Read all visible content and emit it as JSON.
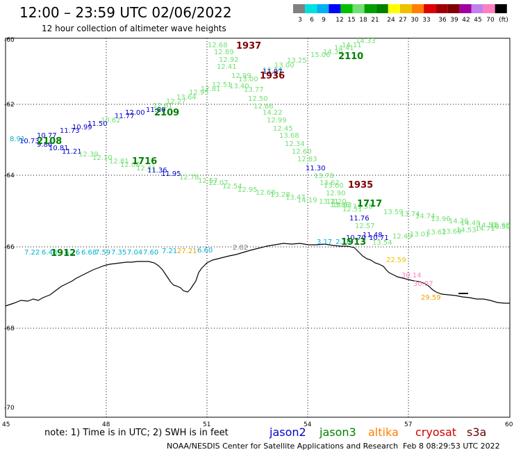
{
  "title": "12:00 – 23:59 UTC 02/06/2022",
  "subtitle": "12 hour collection of altimeter wave heights",
  "colorbar": {
    "colors": [
      "#808080",
      "#00e0e0",
      "#00b0f0",
      "#0000ff",
      "#00c000",
      "#70e070",
      "#00a000",
      "#008000",
      "#ffff00",
      "#f0c000",
      "#ff8000",
      "#e00000",
      "#a00000",
      "#800000",
      "#a000a0",
      "#c080f0",
      "#ff80c0",
      "#000000"
    ],
    "labels": [
      "3",
      "6",
      "9",
      "12",
      "15",
      "18",
      "21",
      "24",
      "27",
      "30",
      "33",
      "36",
      "39",
      "42",
      "45",
      "70",
      "(ft)"
    ]
  },
  "lat_labels": [
    "-60",
    "-62",
    "-64",
    "-66",
    "-68",
    "-70"
  ],
  "lon_labels": [
    "45",
    "48",
    "51",
    "54",
    "57",
    "60"
  ],
  "note": "note: 1) Time is in UTC; 2) SWH is in feet",
  "legend": [
    {
      "name": "jason2",
      "color": "#0000cc"
    },
    {
      "name": "jason3",
      "color": "#008000"
    },
    {
      "name": "altika",
      "color": "#ff8000"
    },
    {
      "name": "cryosat",
      "color": "#cc0000"
    },
    {
      "name": "s3a",
      "color": "#660000"
    }
  ],
  "footer_left": "NOAA/NESDIS Center for Satellite Applications and Research",
  "footer_right": "Feb  8 08:29:53 UTC 2022",
  "colors": {
    "light_green": "#70e070",
    "dark_green": "#008000",
    "cyan": "#00b0d0",
    "blue": "#0000cc",
    "maroon": "#800000",
    "orange": "#f0a000",
    "pink": "#ff80c0",
    "gray": "#808080"
  },
  "labels": [
    {
      "t": "12.68",
      "c": "#70e070"
    },
    {
      "t": "12.89",
      "c": "#70e070"
    },
    {
      "t": "12.92",
      "c": "#70e070"
    },
    {
      "t": "12.41",
      "c": "#70e070"
    },
    {
      "t": "12.99",
      "c": "#70e070"
    },
    {
      "t": "13.00",
      "c": "#70e070"
    },
    {
      "t": "13.40",
      "c": "#70e070"
    },
    {
      "t": "13.77",
      "c": "#70e070"
    },
    {
      "t": "12.50",
      "c": "#70e070"
    },
    {
      "t": "12.66",
      "c": "#70e070"
    },
    {
      "t": "14.22",
      "c": "#70e070"
    },
    {
      "t": "12.99",
      "c": "#70e070"
    },
    {
      "t": "12.45",
      "c": "#70e070"
    },
    {
      "t": "13.68",
      "c": "#70e070"
    },
    {
      "t": "12.34",
      "c": "#70e070"
    },
    {
      "t": "12.60",
      "c": "#70e070"
    },
    {
      "t": "12.83",
      "c": "#70e070"
    },
    {
      "t": "11.30",
      "c": "#0000cc"
    },
    {
      "t": "13.78",
      "c": "#70e070"
    },
    {
      "t": "13.62",
      "c": "#70e070"
    },
    {
      "t": "13.00",
      "c": "#70e070"
    },
    {
      "t": "12.90",
      "c": "#70e070"
    },
    {
      "t": "12.20",
      "c": "#70e070"
    },
    {
      "t": "13.88",
      "c": "#70e070"
    },
    {
      "t": "12.51",
      "c": "#70e070"
    },
    {
      "t": "11.76",
      "c": "#0000cc"
    },
    {
      "t": "12.57",
      "c": "#70e070"
    },
    {
      "t": "11.48",
      "c": "#0000cc"
    },
    {
      "t": "10.70",
      "c": "#0000cc"
    },
    {
      "t": "10.71",
      "c": "#0000cc"
    },
    {
      "t": "2.10",
      "c": "#00b0d0"
    },
    {
      "t": "3.17",
      "c": "#00b0d0"
    },
    {
      "t": "13.54",
      "c": "#70e070"
    },
    {
      "t": "14.33",
      "c": "#70e070"
    },
    {
      "t": "14.11",
      "c": "#70e070"
    },
    {
      "t": "14.41",
      "c": "#70e070"
    },
    {
      "t": "14.30",
      "c": "#70e070"
    },
    {
      "t": "15.06",
      "c": "#70e070"
    },
    {
      "t": "13.25",
      "c": "#70e070"
    },
    {
      "t": "13.00",
      "c": "#70e070"
    },
    {
      "t": "13.14",
      "c": "#70e070"
    },
    {
      "t": "11.97",
      "c": "#0000cc"
    },
    {
      "t": "12.51",
      "c": "#70e070"
    },
    {
      "t": "12.81",
      "c": "#70e070"
    },
    {
      "t": "12.95",
      "c": "#70e070"
    },
    {
      "t": "13.64",
      "c": "#70e070"
    },
    {
      "t": "12.27",
      "c": "#70e070"
    },
    {
      "t": "12.61",
      "c": "#70e070"
    },
    {
      "t": "11.80",
      "c": "#0000cc"
    },
    {
      "t": "12.00",
      "c": "#0000cc"
    },
    {
      "t": "11.77",
      "c": "#0000cc"
    },
    {
      "t": "10.62",
      "c": "#70e070"
    },
    {
      "t": "11.50",
      "c": "#0000cc"
    },
    {
      "t": "10.99",
      "c": "#0000cc"
    },
    {
      "t": "11.73",
      "c": "#0000cc"
    },
    {
      "t": "10.77",
      "c": "#0000cc"
    },
    {
      "t": "8.91",
      "c": "#00b0d0"
    },
    {
      "t": "10.73",
      "c": "#0000cc"
    },
    {
      "t": "9.86",
      "c": "#0000cc"
    },
    {
      "t": "10.81",
      "c": "#0000cc"
    },
    {
      "t": "11.21",
      "c": "#0000cc"
    },
    {
      "t": "12.39",
      "c": "#70e070"
    },
    {
      "t": "12.10",
      "c": "#70e070"
    },
    {
      "t": "12.81",
      "c": "#70e070"
    },
    {
      "t": "12.08",
      "c": "#70e070"
    },
    {
      "t": "12.41",
      "c": "#70e070"
    },
    {
      "t": "11.36",
      "c": "#0000cc"
    },
    {
      "t": "11.95",
      "c": "#0000cc"
    },
    {
      "t": "12.78",
      "c": "#70e070"
    },
    {
      "t": "12.57",
      "c": "#70e070"
    },
    {
      "t": "12.07",
      "c": "#70e070"
    },
    {
      "t": "12.54",
      "c": "#70e070"
    },
    {
      "t": "12.95",
      "c": "#70e070"
    },
    {
      "t": "12.68",
      "c": "#70e070"
    },
    {
      "t": "13.28",
      "c": "#70e070"
    },
    {
      "t": "13.47",
      "c": "#70e070"
    },
    {
      "t": "14.19",
      "c": "#70e070"
    },
    {
      "t": "13.71",
      "c": "#70e070"
    },
    {
      "t": "13.63",
      "c": "#70e070"
    },
    {
      "t": "13.58",
      "c": "#70e070"
    },
    {
      "t": "13.59",
      "c": "#70e070"
    },
    {
      "t": "13.74",
      "c": "#70e070"
    },
    {
      "t": "14.74",
      "c": "#70e070"
    },
    {
      "t": "13.96",
      "c": "#70e070"
    },
    {
      "t": "14.26",
      "c": "#70e070"
    },
    {
      "t": "14.49",
      "c": "#70e070"
    },
    {
      "t": "14.51",
      "c": "#70e070"
    },
    {
      "t": "16.50",
      "c": "#70e070"
    },
    {
      "t": "12.49",
      "c": "#70e070"
    },
    {
      "t": "13.01",
      "c": "#70e070"
    },
    {
      "t": "13.62",
      "c": "#70e070"
    },
    {
      "t": "13.69",
      "c": "#70e070"
    },
    {
      "t": "14.53",
      "c": "#70e070"
    },
    {
      "t": "14.71",
      "c": "#70e070"
    },
    {
      "t": "15.69",
      "c": "#70e070"
    },
    {
      "t": "7.22",
      "c": "#00b0d0"
    },
    {
      "t": "6.48",
      "c": "#00b0d0"
    },
    {
      "t": "6.26",
      "c": "#00b0d0"
    },
    {
      "t": "6.68",
      "c": "#00b0d0"
    },
    {
      "t": "7.59",
      "c": "#00b0d0"
    },
    {
      "t": "7.35",
      "c": "#00b0d0"
    },
    {
      "t": "7.04",
      "c": "#00b0d0"
    },
    {
      "t": "7.60",
      "c": "#00b0d0"
    },
    {
      "t": "7.21",
      "c": "#00b0d0"
    },
    {
      "t": "27.21",
      "c": "#f0a000"
    },
    {
      "t": "6.60",
      "c": "#00b0d0"
    },
    {
      "t": "2.82",
      "c": "#808080"
    },
    {
      "t": "22.59",
      "c": "#f0c000"
    },
    {
      "t": "30.14",
      "c": "#ff80c0"
    },
    {
      "t": "30.07",
      "c": "#ff80c0"
    },
    {
      "t": "29.59",
      "c": "#f0a000"
    }
  ],
  "times": [
    {
      "t": "1937",
      "c": "#800000"
    },
    {
      "t": "1936",
      "c": "#800000"
    },
    {
      "t": "1935",
      "c": "#800000"
    },
    {
      "t": "2110",
      "c": "#008000"
    },
    {
      "t": "2109",
      "c": "#008000"
    },
    {
      "t": "2108",
      "c": "#008000"
    },
    {
      "t": "1716",
      "c": "#008000"
    },
    {
      "t": "1717",
      "c": "#008000"
    },
    {
      "t": "1913",
      "c": "#008000"
    },
    {
      "t": "1912",
      "c": "#008000"
    }
  ]
}
